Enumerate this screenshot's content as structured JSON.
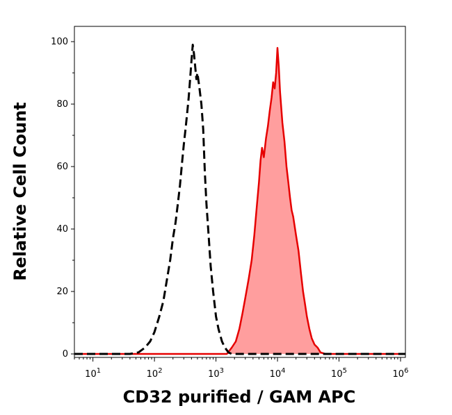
{
  "chart_data": {
    "type": "area",
    "xlabel": "CD32 purified / GAM APC",
    "ylabel": "Relative Cell Count",
    "x_scale": "log",
    "xlim": [
      5,
      1200000
    ],
    "ylim": [
      0,
      100
    ],
    "x_ticks": [
      {
        "value": 10,
        "base": "10",
        "exp": "1"
      },
      {
        "value": 100,
        "base": "10",
        "exp": "2"
      },
      {
        "value": 1000,
        "base": "10",
        "exp": "3"
      },
      {
        "value": 10000,
        "base": "10",
        "exp": "4"
      },
      {
        "value": 100000,
        "base": "10",
        "exp": "5"
      },
      {
        "value": 1000000,
        "base": "10",
        "exp": "6"
      }
    ],
    "y_ticks": [
      {
        "value": 0,
        "label": "0"
      },
      {
        "value": 20,
        "label": "20"
      },
      {
        "value": 40,
        "label": "40"
      },
      {
        "value": 60,
        "label": "60"
      },
      {
        "value": 80,
        "label": "80"
      },
      {
        "value": 100,
        "label": "100"
      }
    ],
    "grid": false,
    "series": [
      {
        "style": "dashed",
        "color": "#000000",
        "fill": "none",
        "points": [
          [
            5,
            0
          ],
          [
            40,
            0
          ],
          [
            55,
            0.5
          ],
          [
            70,
            2
          ],
          [
            85,
            4
          ],
          [
            100,
            7
          ],
          [
            120,
            12
          ],
          [
            140,
            17
          ],
          [
            160,
            24
          ],
          [
            180,
            30
          ],
          [
            200,
            37
          ],
          [
            220,
            42
          ],
          [
            240,
            48
          ],
          [
            260,
            54
          ],
          [
            280,
            61
          ],
          [
            300,
            67
          ],
          [
            320,
            72
          ],
          [
            340,
            77
          ],
          [
            360,
            82
          ],
          [
            380,
            88
          ],
          [
            400,
            94
          ],
          [
            420,
            99
          ],
          [
            440,
            96
          ],
          [
            460,
            92
          ],
          [
            480,
            88
          ],
          [
            500,
            90
          ],
          [
            540,
            85
          ],
          [
            580,
            80
          ],
          [
            620,
            72
          ],
          [
            660,
            58
          ],
          [
            700,
            48
          ],
          [
            760,
            38
          ],
          [
            820,
            28
          ],
          [
            900,
            20
          ],
          [
            1000,
            12
          ],
          [
            1100,
            8
          ],
          [
            1250,
            4
          ],
          [
            1400,
            2
          ],
          [
            1600,
            0.5
          ],
          [
            1800,
            0
          ],
          [
            1200000,
            0
          ]
        ]
      },
      {
        "style": "solid",
        "color": "#e60000",
        "fill": "#ff9e9e",
        "points": [
          [
            5,
            0
          ],
          [
            1500,
            0
          ],
          [
            1800,
            2
          ],
          [
            2100,
            4
          ],
          [
            2400,
            8
          ],
          [
            2700,
            13
          ],
          [
            3000,
            18
          ],
          [
            3400,
            24
          ],
          [
            3800,
            30
          ],
          [
            4200,
            38
          ],
          [
            4600,
            47
          ],
          [
            5000,
            55
          ],
          [
            5300,
            62
          ],
          [
            5600,
            66
          ],
          [
            6000,
            63
          ],
          [
            6500,
            69
          ],
          [
            7000,
            73
          ],
          [
            7500,
            78
          ],
          [
            8000,
            82
          ],
          [
            8500,
            87
          ],
          [
            9000,
            85
          ],
          [
            9500,
            90
          ],
          [
            10000,
            98
          ],
          [
            10500,
            92
          ],
          [
            11000,
            84
          ],
          [
            12000,
            74
          ],
          [
            13000,
            68
          ],
          [
            14000,
            60
          ],
          [
            15000,
            55
          ],
          [
            16000,
            50
          ],
          [
            17000,
            46
          ],
          [
            18000,
            44
          ],
          [
            20000,
            38
          ],
          [
            22000,
            33
          ],
          [
            24000,
            26
          ],
          [
            26000,
            20
          ],
          [
            28000,
            16
          ],
          [
            30000,
            12
          ],
          [
            33000,
            8
          ],
          [
            36000,
            5
          ],
          [
            40000,
            3
          ],
          [
            45000,
            2
          ],
          [
            50000,
            0.5
          ],
          [
            60000,
            0
          ],
          [
            1200000,
            0
          ]
        ]
      }
    ]
  }
}
